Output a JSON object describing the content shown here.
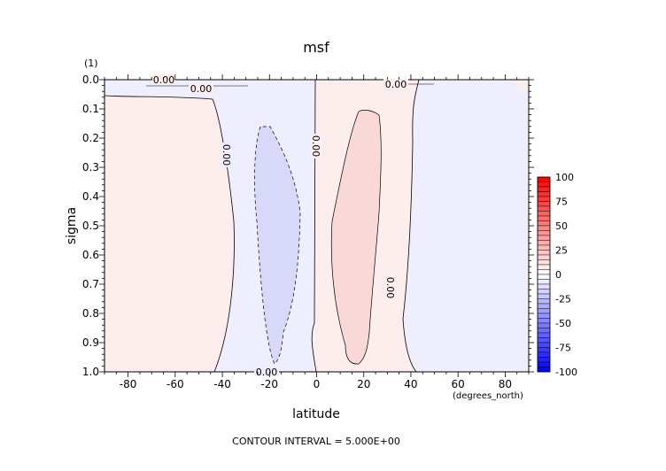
{
  "chart_data": {
    "type": "heatmap",
    "title": "msf",
    "xlabel": "latitude",
    "x_units": "(degrees_north)",
    "ylabel": "sigma",
    "y_units": "(1)",
    "xlim": [
      -90,
      90
    ],
    "ylim": [
      0.0,
      1.0
    ],
    "y_inverted": true,
    "x_ticks": [
      "-80",
      "-60",
      "-40",
      "-20",
      "0",
      "20",
      "40",
      "60",
      "80"
    ],
    "y_ticks": [
      "0.0",
      "0.1",
      "0.2",
      "0.3",
      "0.4",
      "0.5",
      "0.6",
      "0.7",
      "0.8",
      "0.9",
      "1.0"
    ],
    "contour_interval_label": "CONTOUR INTERVAL = 5.000E+00",
    "contour_labels": [
      "0.00",
      "0.00",
      "0.00",
      "0.00",
      "0.00",
      "0.00",
      "0.00"
    ],
    "colorbar": {
      "ticks": [
        "100",
        "75",
        "50",
        "25",
        "0",
        "-25",
        "-50",
        "-75",
        "-100"
      ],
      "min": -100,
      "max": 100,
      "negative_color": "#0000ff",
      "positive_color": "#ff0000",
      "zero_color": "#ffffff"
    },
    "regions": [
      {
        "sign": "positive",
        "level": "0 to 5",
        "lat_range": [
          -90,
          -38
        ],
        "color": "#fdeeee"
      },
      {
        "sign": "negative",
        "level": "-5 to 0",
        "lat_range": [
          -38,
          0
        ],
        "color": "#eeeefd"
      },
      {
        "sign": "negative",
        "level": "-10 to -5",
        "lat_range": [
          -24,
          -12
        ],
        "sigma_range": [
          0.16,
          0.97
        ],
        "color": "#d8d8f8"
      },
      {
        "sign": "positive",
        "level": "0 to 5",
        "lat_range": [
          0,
          40
        ],
        "color": "#fdeeee"
      },
      {
        "sign": "positive",
        "level": "5 to 10",
        "lat_range": [
          6,
          28
        ],
        "sigma_range": [
          0.11,
          0.97
        ],
        "color": "#f9d8d8"
      },
      {
        "sign": "negative",
        "level": "-5 to 0",
        "lat_range": [
          40,
          90
        ],
        "color": "#eeeefd"
      }
    ]
  }
}
